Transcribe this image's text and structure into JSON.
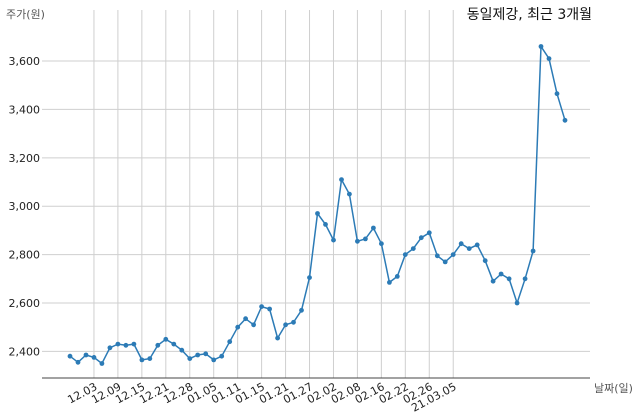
{
  "chart_data": {
    "type": "line",
    "title": "동일제강, 최근 3개월",
    "xlabel": "날짜(일)",
    "ylabel": "주가(원)",
    "ylim": [
      2290,
      3720
    ],
    "yticks": [
      2400,
      2600,
      2800,
      3000,
      3200,
      3400,
      3600
    ],
    "ytick_labels": [
      "2,400",
      "2,600",
      "2,800",
      "3,000",
      "3,200",
      "3,400",
      "3,600"
    ],
    "xtick_labels": [
      "12.03",
      "12.09",
      "12.15",
      "12.21",
      "12.28",
      "01.05",
      "01.11",
      "01.15",
      "01.21",
      "01.27",
      "02.02",
      "02.08",
      "02.16",
      "02.22",
      "02.26",
      "21.03.05"
    ],
    "xtick_index": [
      3,
      6,
      9,
      12,
      15,
      18,
      21,
      24,
      27,
      30,
      33,
      36,
      39,
      42,
      45,
      48
    ],
    "grid": true,
    "series": [
      {
        "color": "#2c7bb6",
        "values": [
          2380,
          2355,
          2385,
          2375,
          2350,
          2415,
          2430,
          2425,
          2430,
          2365,
          2370,
          2425,
          2450,
          2430,
          2405,
          2370,
          2385,
          2390,
          2365,
          2380,
          2440,
          2500,
          2535,
          2510,
          2585,
          2575,
          2455,
          2510,
          2520,
          2570,
          2705,
          2970,
          2925,
          2860,
          3110,
          3050,
          2855,
          2865,
          2910,
          2845,
          2685,
          2710,
          2800,
          2825,
          2870,
          2890,
          2795,
          2770,
          2800,
          2845,
          2825,
          2840,
          2775,
          2690,
          2720,
          2700,
          2600,
          2700,
          2815,
          3660,
          3610,
          3465,
          3355
        ]
      }
    ]
  }
}
